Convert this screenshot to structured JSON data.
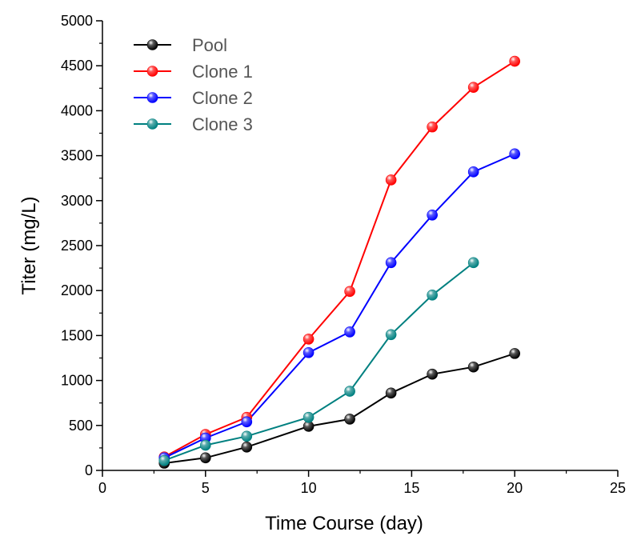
{
  "chart_data": {
    "type": "line",
    "xlabel": "Time Course (day)",
    "ylabel": "Titer (mg/L)",
    "xlim": [
      0,
      25
    ],
    "ylim": [
      0,
      5000
    ],
    "x_ticks": [
      "0",
      "5",
      "10",
      "15",
      "20",
      "25"
    ],
    "y_ticks": [
      "0",
      "500",
      "1000",
      "1500",
      "2000",
      "2500",
      "3000",
      "3500",
      "4000",
      "4500",
      "5000"
    ],
    "grid": false,
    "legend_position": "top-left",
    "series": [
      {
        "name": "Pool",
        "color": "#000000",
        "x": [
          3,
          5,
          7,
          10,
          12,
          14,
          16,
          18,
          20
        ],
        "y": [
          80,
          140,
          260,
          490,
          570,
          860,
          1070,
          1150,
          1300
        ]
      },
      {
        "name": "Clone 1",
        "color": "#ff0000",
        "x": [
          3,
          5,
          7,
          10,
          12,
          14,
          16,
          18,
          20
        ],
        "y": [
          150,
          400,
          590,
          1460,
          1990,
          3230,
          3820,
          4260,
          4550
        ]
      },
      {
        "name": "Clone 2",
        "color": "#0000ff",
        "x": [
          3,
          5,
          7,
          10,
          12,
          14,
          16,
          18,
          20
        ],
        "y": [
          140,
          360,
          540,
          1310,
          1540,
          2310,
          2840,
          3320,
          3520
        ]
      },
      {
        "name": "Clone 3",
        "color": "#008080",
        "x": [
          3,
          5,
          7,
          10,
          12,
          14,
          16,
          18
        ],
        "y": [
          110,
          280,
          380,
          590,
          880,
          1510,
          1950,
          2310
        ]
      }
    ]
  }
}
